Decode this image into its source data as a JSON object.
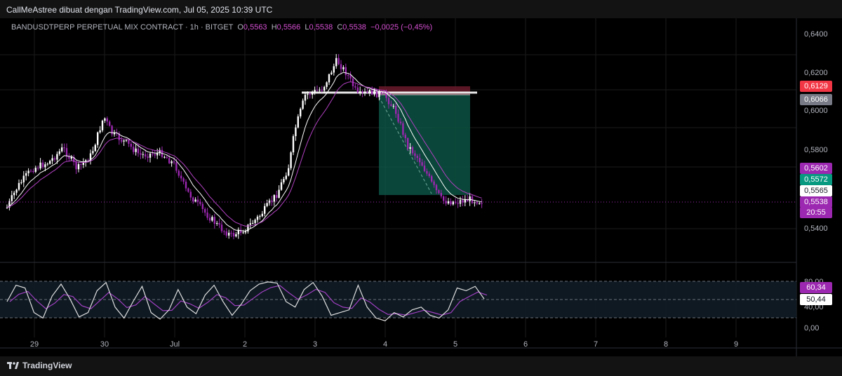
{
  "header": {
    "caption": "CallMeAstree dibuat dengan TradingView.com, Jul 05, 2025 10:39 UTC"
  },
  "legend": {
    "symbol": "BANDUSDTPERP PERPETUAL MIX CONTRACT · 1h · BITGET",
    "o_label": "O",
    "o_value": "0,5563",
    "h_label": "H",
    "h_value": "0,5566",
    "l_label": "L",
    "l_value": "0,5538",
    "c_label": "C",
    "c_value": "0,5538",
    "change": "−0,0025 (−0,45%)"
  },
  "price_axis": {
    "ticks": [
      "0,6400",
      "0,6200",
      "0,6000",
      "0,5800",
      "0,5400"
    ]
  },
  "price_badges": [
    {
      "label": "0,6129",
      "color": "#f23645"
    },
    {
      "label": "0,6066",
      "color": "#787b86"
    },
    {
      "label": "0,5602",
      "color": "#9c27b0"
    },
    {
      "label": "0,5572",
      "color": "#089981"
    },
    {
      "label": "0,5565",
      "color": "#ffffff"
    },
    {
      "label": "0,5538",
      "color": "#9c27b0"
    },
    {
      "label": "20:55",
      "color": "#9c27b0"
    }
  ],
  "osc_axis": {
    "ticks": [
      "80,00",
      "40,00",
      "0,00"
    ]
  },
  "osc_badges": [
    {
      "label": "60,34",
      "color": "#9c27b0"
    },
    {
      "label": "50,44",
      "color": "#ffffff"
    }
  ],
  "time_axis": {
    "labels": [
      "29",
      "30",
      "Jul",
      "2",
      "3",
      "4",
      "5",
      "6",
      "7",
      "8",
      "9"
    ]
  },
  "footer": {
    "brand": "TradingView"
  },
  "colors": {
    "up": "#ffffff",
    "down": "#9c27b0",
    "ema_fast": "#ffffff",
    "ema_slow": "#b040c0",
    "profit_zone": "#0d5e4e",
    "loss_zone": "#6a1a2a",
    "osc_k": "#e0e0e0",
    "osc_d": "#a040c0",
    "grid": "#1b1b1b"
  }
}
